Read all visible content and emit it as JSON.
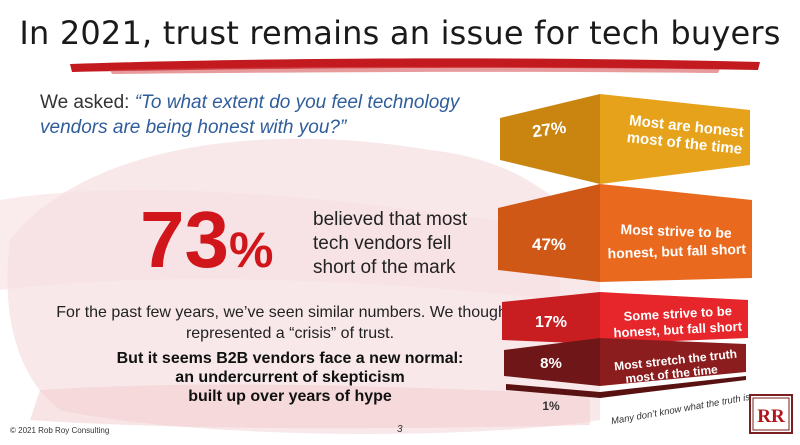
{
  "slide": {
    "title": "In 2021, trust remains an issue for tech buyers",
    "question_lead": "We asked: ",
    "question_text": "“To what extent do you feel technology vendors are being honest with you?”",
    "headline_value": "73",
    "headline_symbol": "%",
    "headline_text": "believed that most tech vendors fell short of the mark",
    "paragraph": "For the past few years, we’ve seen similar numbers. We thought it represented a “crisis” of trust.",
    "bold_line1": "But it seems B2B vendors face a new normal:",
    "bold_line2": "an undercurrent of skepticism",
    "bold_line3": "built up over years of hype",
    "footer": "© 2021 Rob Roy Consulting",
    "page_number": "3",
    "logo_text": "RR"
  },
  "chart_data": {
    "type": "pyramid",
    "levels": [
      {
        "value": "27%",
        "line1": "Most are honest",
        "line2": "most of the time",
        "color": "#e6a21a"
      },
      {
        "value": "47%",
        "line1": "Most strive to be",
        "line2": "honest, but fall short",
        "color": "#e96a1f"
      },
      {
        "value": "17%",
        "line1": "Some strive to be",
        "line2": "honest, but fall short",
        "color": "#e6262a"
      },
      {
        "value": "8%",
        "line1": "Most stretch the truth",
        "line2": "most of the time",
        "color": "#8c1d1e"
      },
      {
        "value": "1%",
        "line1": "Many don’t know what the truth is",
        "line2": "",
        "color": "#6b1516"
      }
    ]
  }
}
